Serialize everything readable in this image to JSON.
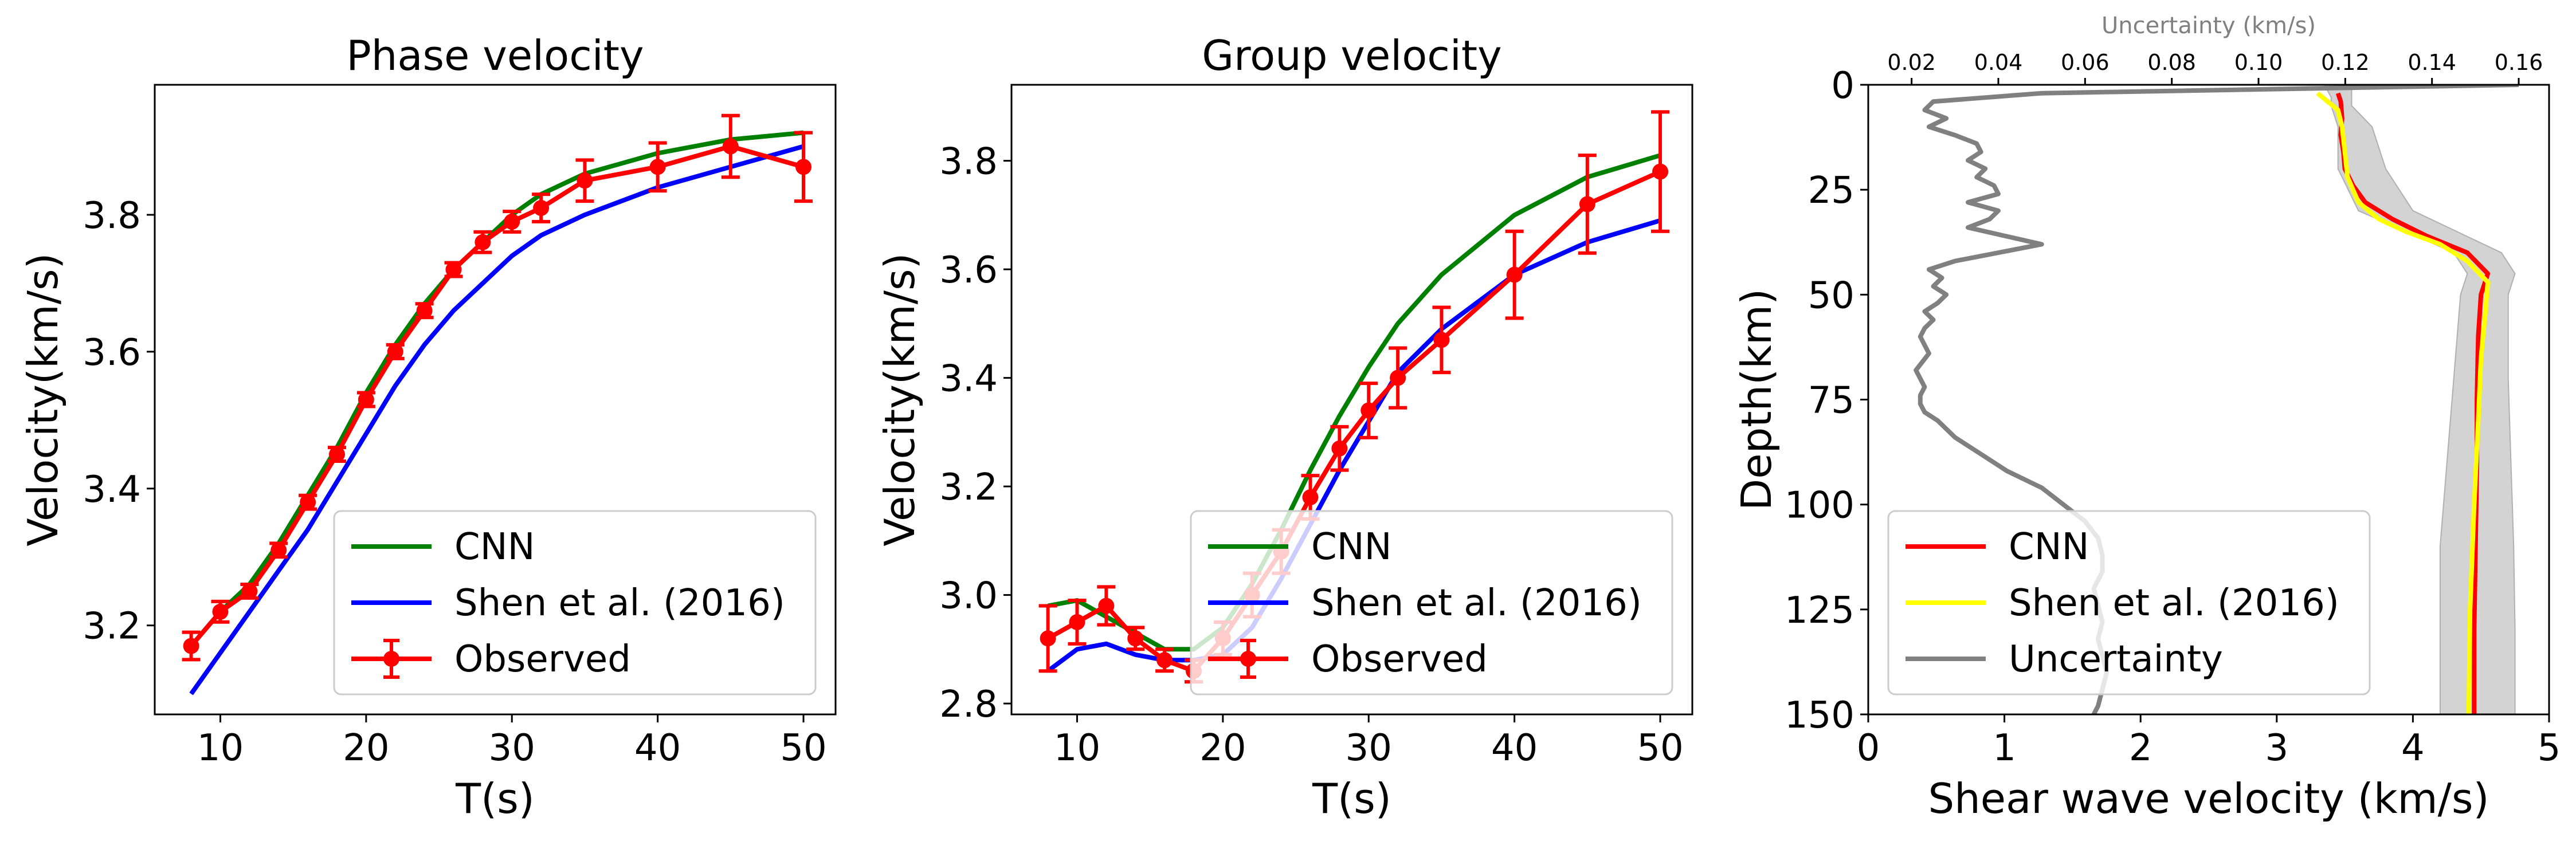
{
  "chart_data": [
    {
      "type": "line",
      "title": "Phase velocity",
      "xlabel": "T(s)",
      "ylabel": "Velocity(km/s)",
      "xlim": [
        5.5,
        52.2
      ],
      "ylim": [
        3.07,
        3.99
      ],
      "xticks": [
        10,
        20,
        30,
        40,
        50
      ],
      "yticks": [
        3.2,
        3.4,
        3.6,
        3.8
      ],
      "ytick_labels": [
        "3.2",
        "3.4",
        "3.6",
        "3.8"
      ],
      "legend_position": "lower right",
      "series": [
        {
          "name": "CNN",
          "color": "#008000",
          "kind": "line",
          "x": [
            8,
            10,
            12,
            14,
            16,
            18,
            20,
            22,
            24,
            26,
            28,
            30,
            32,
            35,
            40,
            45,
            50
          ],
          "y": [
            3.17,
            3.22,
            3.26,
            3.32,
            3.39,
            3.46,
            3.54,
            3.61,
            3.67,
            3.72,
            3.76,
            3.8,
            3.83,
            3.86,
            3.89,
            3.91,
            3.92
          ]
        },
        {
          "name": "Shen et al. (2016)",
          "color": "#0000ff",
          "kind": "line",
          "x": [
            8,
            10,
            12,
            14,
            16,
            18,
            20,
            22,
            24,
            26,
            28,
            30,
            32,
            35,
            40,
            45,
            50
          ],
          "y": [
            3.1,
            3.16,
            3.22,
            3.28,
            3.34,
            3.41,
            3.48,
            3.55,
            3.61,
            3.66,
            3.7,
            3.74,
            3.77,
            3.8,
            3.84,
            3.87,
            3.9
          ]
        },
        {
          "name": "Observed",
          "color": "#ff0000",
          "kind": "errorbar",
          "x": [
            8,
            10,
            12,
            14,
            16,
            18,
            20,
            22,
            24,
            26,
            28,
            30,
            32,
            35,
            40,
            45,
            50
          ],
          "y": [
            3.17,
            3.22,
            3.25,
            3.31,
            3.38,
            3.45,
            3.53,
            3.6,
            3.66,
            3.72,
            3.76,
            3.79,
            3.81,
            3.85,
            3.87,
            3.9,
            3.87
          ],
          "err": [
            0.02,
            0.015,
            0.01,
            0.01,
            0.01,
            0.01,
            0.01,
            0.01,
            0.01,
            0.01,
            0.015,
            0.015,
            0.02,
            0.03,
            0.035,
            0.045,
            0.05
          ]
        }
      ]
    },
    {
      "type": "line",
      "title": "Group velocity",
      "xlabel": "T(s)",
      "ylabel": "Velocity(km/s)",
      "xlim": [
        5.5,
        52.2
      ],
      "ylim": [
        2.78,
        3.94
      ],
      "xticks": [
        10,
        20,
        30,
        40,
        50
      ],
      "yticks": [
        2.8,
        3.0,
        3.2,
        3.4,
        3.6,
        3.8
      ],
      "ytick_labels": [
        "2.8",
        "3.0",
        "3.2",
        "3.4",
        "3.6",
        "3.8"
      ],
      "legend_position": "lower right",
      "series": [
        {
          "name": "CNN",
          "color": "#008000",
          "kind": "line",
          "x": [
            8,
            10,
            12,
            14,
            16,
            18,
            20,
            22,
            24,
            26,
            28,
            30,
            32,
            35,
            40,
            45,
            50
          ],
          "y": [
            2.98,
            2.99,
            2.96,
            2.93,
            2.9,
            2.9,
            2.94,
            3.02,
            3.12,
            3.23,
            3.33,
            3.42,
            3.5,
            3.59,
            3.7,
            3.77,
            3.81
          ]
        },
        {
          "name": "Shen et al. (2016)",
          "color": "#0000ff",
          "kind": "line",
          "x": [
            8,
            10,
            12,
            14,
            16,
            18,
            20,
            22,
            24,
            26,
            28,
            30,
            32,
            35,
            40,
            45,
            50
          ],
          "y": [
            2.86,
            2.9,
            2.91,
            2.89,
            2.88,
            2.88,
            2.89,
            2.94,
            3.03,
            3.13,
            3.23,
            3.32,
            3.41,
            3.49,
            3.59,
            3.65,
            3.69
          ]
        },
        {
          "name": "Observed",
          "color": "#ff0000",
          "kind": "errorbar",
          "x": [
            8,
            10,
            12,
            14,
            16,
            18,
            20,
            22,
            24,
            26,
            28,
            30,
            32,
            35,
            40,
            45,
            50
          ],
          "y": [
            2.92,
            2.95,
            2.98,
            2.92,
            2.88,
            2.86,
            2.92,
            3.0,
            3.08,
            3.18,
            3.27,
            3.34,
            3.4,
            3.47,
            3.59,
            3.72,
            3.78
          ],
          "err": [
            0.06,
            0.04,
            0.035,
            0.02,
            0.02,
            0.02,
            0.03,
            0.04,
            0.04,
            0.04,
            0.04,
            0.05,
            0.055,
            0.06,
            0.08,
            0.09,
            0.11
          ]
        }
      ]
    },
    {
      "type": "line",
      "title": "",
      "xlabel": "Shear wave velocity (km/s)",
      "ylabel": "Depth(km)",
      "xlim": [
        0,
        5
      ],
      "ylim": [
        150,
        0
      ],
      "xticks": [
        0,
        1,
        2,
        3,
        4,
        5
      ],
      "yticks": [
        0,
        25,
        50,
        75,
        100,
        125,
        150
      ],
      "secondary_xlabel": "Uncertainty (km/s)",
      "secondary_xlim": [
        0.01,
        0.167
      ],
      "secondary_xticks": [
        0.02,
        0.04,
        0.06,
        0.08,
        0.1,
        0.12,
        0.14,
        0.16
      ],
      "secondary_xtick_labels": [
        "0.02",
        "0.04",
        "0.06",
        "0.08",
        "0.10",
        "0.12",
        "0.14",
        "0.16"
      ],
      "secondary_color": "#808080",
      "legend_position": "lower left",
      "band": {
        "color": "#d3d3d3",
        "depth": [
          0,
          3,
          5,
          10,
          20,
          30,
          40,
          45,
          50,
          70,
          90,
          110,
          130,
          150
        ],
        "lower": [
          3.35,
          3.4,
          3.4,
          3.45,
          3.45,
          3.6,
          4.3,
          4.4,
          4.35,
          4.3,
          4.25,
          4.2,
          4.2,
          4.2
        ],
        "upper": [
          3.55,
          3.55,
          3.55,
          3.7,
          3.8,
          4.0,
          4.65,
          4.75,
          4.7,
          4.7,
          4.72,
          4.74,
          4.75,
          4.75
        ]
      },
      "series": [
        {
          "name": "CNN",
          "color": "#ff0000",
          "kind": "line",
          "x": [
            3.45,
            3.47,
            3.48,
            3.47,
            3.49,
            3.5,
            3.56,
            3.65,
            3.85,
            4.1,
            4.4,
            4.55,
            4.5,
            4.48,
            4.47,
            4.47,
            4.46,
            4.45,
            4.45
          ],
          "y": [
            2,
            4,
            8,
            12,
            16,
            20,
            24,
            28,
            32,
            36,
            40,
            45,
            50,
            60,
            75,
            90,
            110,
            130,
            150
          ]
        },
        {
          "name": "Shen et al. (2016)",
          "color": "#ffff00",
          "kind": "line",
          "x": [
            3.3,
            3.45,
            3.48,
            3.5,
            3.52,
            3.6,
            3.75,
            3.95,
            4.2,
            4.4,
            4.55,
            4.53,
            4.5,
            4.48,
            4.45,
            4.42,
            4.41
          ],
          "y": [
            2,
            6,
            10,
            16,
            22,
            28,
            32,
            35,
            38,
            42,
            47,
            55,
            65,
            80,
            100,
            125,
            150
          ]
        },
        {
          "name": "Uncertainty",
          "color": "#808080",
          "kind": "line",
          "axis": "secondary",
          "x": [
            0.16,
            0.05,
            0.025,
            0.023,
            0.028,
            0.024,
            0.03,
            0.035,
            0.036,
            0.033,
            0.037,
            0.035,
            0.039,
            0.04,
            0.033,
            0.04,
            0.038,
            0.033,
            0.05,
            0.03,
            0.024,
            0.027,
            0.025,
            0.028,
            0.026,
            0.023,
            0.025,
            0.023,
            0.022,
            0.024,
            0.021,
            0.023,
            0.022,
            0.022,
            0.023,
            0.026,
            0.03,
            0.036,
            0.042,
            0.05,
            0.055,
            0.06,
            0.063,
            0.064,
            0.064,
            0.062,
            0.063,
            0.064,
            0.063,
            0.064,
            0.065,
            0.064,
            0.063,
            0.062
          ],
          "y": [
            0,
            2,
            4,
            6,
            8,
            10,
            12,
            14,
            16,
            18,
            20,
            22,
            24,
            26,
            28,
            30,
            32,
            34,
            38,
            42,
            44,
            46,
            48,
            50,
            52,
            54,
            56,
            58,
            60,
            64,
            68,
            72,
            74,
            76,
            78,
            80,
            84,
            88,
            92,
            96,
            100,
            104,
            108,
            112,
            116,
            120,
            124,
            128,
            132,
            136,
            140,
            144,
            148,
            150
          ]
        }
      ]
    }
  ]
}
